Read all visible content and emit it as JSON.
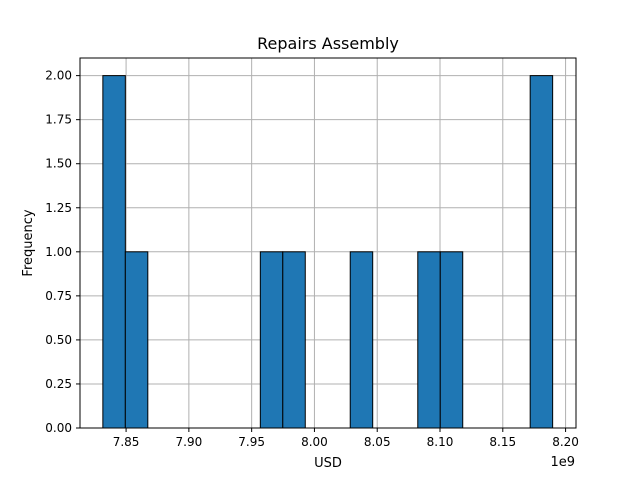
{
  "chart_data": {
    "type": "bar",
    "title": "Repairs Assembly",
    "xlabel": "USD",
    "ylabel": "Frequency",
    "x_offset_text": "1e9",
    "xlim": [
      7.8133,
      8.2083
    ],
    "ylim": [
      0,
      2.1
    ],
    "x_ticks": [
      7.85,
      7.9,
      7.95,
      8.0,
      8.05,
      8.1,
      8.15,
      8.2
    ],
    "x_tick_labels": [
      "7.85",
      "7.90",
      "7.95",
      "8.00",
      "8.05",
      "8.10",
      "8.15",
      "8.20"
    ],
    "y_ticks": [
      0,
      0.25,
      0.5,
      0.75,
      1.0,
      1.25,
      1.5,
      1.75,
      2.0
    ],
    "y_tick_labels": [
      "0.00",
      "0.25",
      "0.50",
      "0.75",
      "1.00",
      "1.25",
      "1.50",
      "1.75",
      "2.00"
    ],
    "grid": true,
    "bar_color": "#1f77b4",
    "bar_edge_color": "#000000",
    "grid_color": "#b0b0b0",
    "bins": [
      {
        "x0": 7.8315,
        "x1": 7.8494,
        "count": 2
      },
      {
        "x0": 7.8494,
        "x1": 7.8673,
        "count": 1
      },
      {
        "x0": 7.8673,
        "x1": 7.8852,
        "count": 0
      },
      {
        "x0": 7.8852,
        "x1": 7.9031,
        "count": 0
      },
      {
        "x0": 7.9031,
        "x1": 7.921,
        "count": 0
      },
      {
        "x0": 7.921,
        "x1": 7.939,
        "count": 0
      },
      {
        "x0": 7.939,
        "x1": 7.9569,
        "count": 0
      },
      {
        "x0": 7.9569,
        "x1": 7.9748,
        "count": 1
      },
      {
        "x0": 7.9748,
        "x1": 7.9927,
        "count": 1
      },
      {
        "x0": 7.9927,
        "x1": 8.0106,
        "count": 0
      },
      {
        "x0": 8.0106,
        "x1": 8.0285,
        "count": 0
      },
      {
        "x0": 8.0285,
        "x1": 8.0464,
        "count": 1
      },
      {
        "x0": 8.0464,
        "x1": 8.0643,
        "count": 0
      },
      {
        "x0": 8.0643,
        "x1": 8.0823,
        "count": 0
      },
      {
        "x0": 8.0823,
        "x1": 8.1002,
        "count": 1
      },
      {
        "x0": 8.1002,
        "x1": 8.1181,
        "count": 1
      },
      {
        "x0": 8.1181,
        "x1": 8.136,
        "count": 0
      },
      {
        "x0": 8.136,
        "x1": 8.1539,
        "count": 0
      },
      {
        "x0": 8.1539,
        "x1": 8.1718,
        "count": 0
      },
      {
        "x0": 8.1718,
        "x1": 8.1897,
        "count": 2
      }
    ]
  }
}
